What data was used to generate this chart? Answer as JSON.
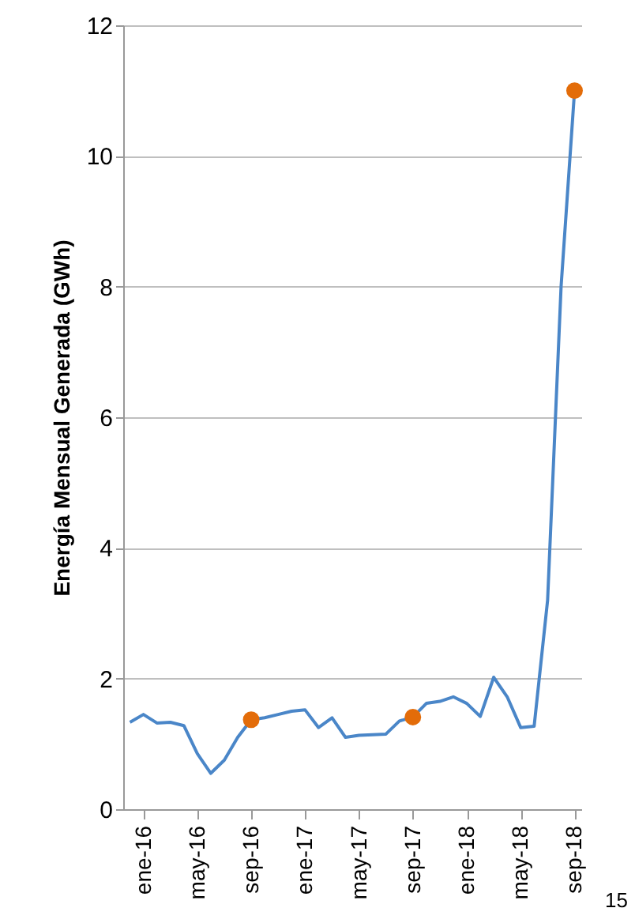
{
  "chart_data": {
    "type": "line",
    "ylabel": "Energía Mensual Generada (GWh)",
    "categories": [
      null,
      "ene-16",
      null,
      null,
      null,
      "may-16",
      null,
      null,
      null,
      "sep-16",
      null,
      null,
      null,
      "ene-17",
      null,
      null,
      null,
      "may-17",
      null,
      null,
      null,
      "sep-17",
      null,
      null,
      null,
      "ene-18",
      null,
      null,
      null,
      "may-18",
      null,
      null,
      null,
      "sep-18"
    ],
    "series": [
      {
        "color": "#4a86c8",
        "values": [
          1.33,
          1.45,
          1.32,
          1.33,
          1.28,
          0.85,
          0.55,
          0.75,
          1.1,
          1.37,
          1.4,
          1.45,
          1.5,
          1.52,
          1.25,
          1.4,
          1.1,
          1.13,
          1.14,
          1.15,
          1.35,
          1.41,
          1.62,
          1.65,
          1.72,
          1.62,
          1.42,
          2.02,
          1.72,
          1.25,
          1.27,
          3.2,
          8.0,
          11.0
        ]
      },
      {
        "type": "scatter",
        "color": "#e36c09",
        "marker": "circle",
        "x": [
          "sep-16",
          "sep-17",
          "sep-18"
        ],
        "values": [
          1.37,
          1.41,
          11.0
        ]
      }
    ],
    "ylim": [
      0,
      12
    ],
    "yticks": [
      0,
      2,
      4,
      6,
      8,
      10,
      12
    ],
    "grid": "y",
    "line_style": "solid",
    "annotations": [
      "15"
    ]
  }
}
